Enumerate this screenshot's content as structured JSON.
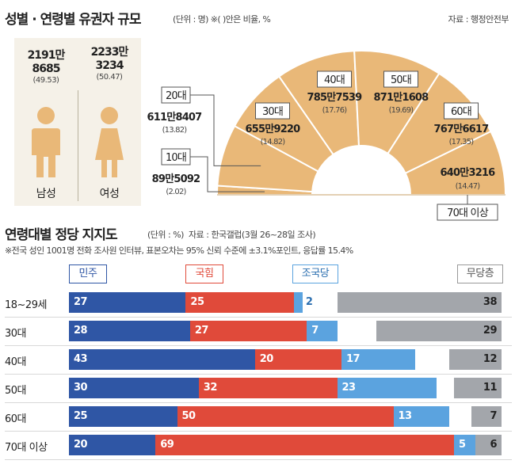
{
  "top": {
    "title": "성별 · 연령별 유권자 규모",
    "unit_note": "(단위 : 명)  ※(  )안은 비율, %",
    "source": "자료 : 행정안전부",
    "male": {
      "count_line1": "2191만",
      "count_line2": "8685",
      "share": "(49.53)",
      "label": "남성"
    },
    "female": {
      "count_line1": "2233만",
      "count_line2": "3234",
      "share": "(50.47)",
      "label": "여성"
    },
    "age_groups": [
      {
        "label": "10대",
        "count": "89만5092",
        "share": "(2.02)",
        "pct": 2.02
      },
      {
        "label": "20대",
        "count": "611만8407",
        "share": "(13.82)",
        "pct": 13.82
      },
      {
        "label": "30대",
        "count": "655만9220",
        "share": "(14.82)",
        "pct": 14.82
      },
      {
        "label": "40대",
        "count": "785만7539",
        "share": "(17.76)",
        "pct": 17.76
      },
      {
        "label": "50대",
        "count": "871만1608",
        "share": "(19.69)",
        "pct": 19.69
      },
      {
        "label": "60대",
        "count": "767만6617",
        "share": "(17.35)",
        "pct": 17.35
      },
      {
        "label": "70대 이상",
        "count": "640만3216",
        "share": "(14.47)",
        "pct": 14.47
      }
    ]
  },
  "bottom": {
    "title": "연령대별 정당 지지도",
    "unit": "(단위 : %)",
    "source": "자료 : 한국갤럽(3월 26~28일 조사)",
    "footnote": "※전국 성인 1001명 전화 조사원 인터뷰, 표본오차는 95% 신뢰 수준에 ±3.1%포인트, 응답률 15.4%",
    "legend": [
      "민주",
      "국힘",
      "조국당",
      "무당층"
    ]
  },
  "colors": {
    "minju": "#2f56a5",
    "gukhim": "#e04a3a",
    "joguk": "#5ba3df",
    "none": "#a3a6ab",
    "other": "#ffffff",
    "fan": "#e9b878",
    "fan_border": "#ffffff"
  },
  "chart_data": [
    {
      "type": "pie",
      "title": "성별 · 연령별 유권자 규모",
      "categories": [
        "10대",
        "20대",
        "30대",
        "40대",
        "50대",
        "60대",
        "70대 이상"
      ],
      "values": [
        2.02,
        13.82,
        14.82,
        17.76,
        19.69,
        17.35,
        14.47
      ],
      "counts": [
        "89만5092",
        "611만8407",
        "655만9220",
        "785만7539",
        "871만1608",
        "767만6617",
        "640만3216"
      ]
    },
    {
      "type": "bar",
      "title": "연령대별 정당 지지도",
      "ylabel": "(단위 : %)",
      "categories": [
        "18~29세",
        "30대",
        "40대",
        "50대",
        "60대",
        "70대 이상"
      ],
      "series": [
        {
          "name": "민주",
          "values": [
            27,
            28,
            43,
            30,
            25,
            20
          ]
        },
        {
          "name": "국힘",
          "values": [
            25,
            27,
            20,
            32,
            50,
            69
          ]
        },
        {
          "name": "조국당",
          "values": [
            2,
            7,
            17,
            23,
            13,
            5
          ]
        },
        {
          "name": "무당층",
          "values": [
            38,
            29,
            12,
            11,
            7,
            6
          ]
        }
      ]
    }
  ]
}
